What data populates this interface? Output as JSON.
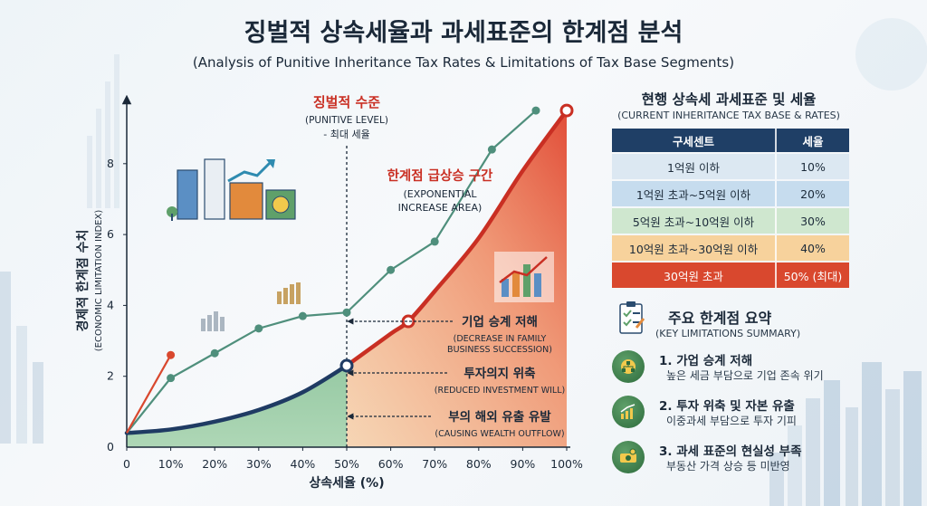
{
  "title": "징벌적 상속세율과 과세표준의 한계점 분석",
  "subtitle": "(Analysis of Punitive Inheritance Tax Rates & Limitations of Tax Base Segments)",
  "chart_data": {
    "type": "line",
    "xlabel": "상속세율 (%)",
    "ylabel": "경제적 한계점 수치",
    "ylabel_en": "(ECONOMIC LIMITATION INDEX)",
    "xlim": [
      0,
      100
    ],
    "ylim": [
      0,
      9.4
    ],
    "x_ticks": [
      0,
      10,
      20,
      30,
      40,
      50,
      60,
      70,
      80,
      90,
      100
    ],
    "x_tick_labels": [
      "0",
      "10%",
      "20%",
      "30%",
      "40%",
      "50%",
      "60%",
      "70%",
      "80%",
      "90%",
      "100%"
    ],
    "y_ticks": [
      0,
      2,
      4,
      6,
      8
    ],
    "y_tick_labels": [
      "0",
      "2",
      "4",
      "6",
      "8"
    ],
    "series": [
      {
        "kind": "curve",
        "color": "#1f3b63",
        "points": [
          [
            0,
            0.4
          ],
          [
            10,
            0.5
          ],
          [
            20,
            0.72
          ],
          [
            30,
            1.05
          ],
          [
            40,
            1.55
          ],
          [
            50,
            2.3
          ]
        ]
      },
      {
        "kind": "curve",
        "color": "#c92f23",
        "points": [
          [
            50,
            2.3
          ],
          [
            60,
            3.2
          ],
          [
            64,
            3.55
          ],
          [
            70,
            4.4
          ],
          [
            80,
            5.9
          ],
          [
            90,
            7.8
          ],
          [
            100,
            9.5
          ]
        ]
      },
      {
        "kind": "markers",
        "color": "#4f8f7c",
        "points": [
          [
            0,
            0.4
          ],
          [
            10,
            1.95
          ],
          [
            20,
            2.65
          ],
          [
            30,
            3.35
          ],
          [
            40,
            3.7
          ],
          [
            50,
            3.8
          ],
          [
            60,
            5.0
          ],
          [
            70,
            5.8
          ],
          [
            83,
            8.4
          ],
          [
            93,
            9.5
          ]
        ]
      },
      {
        "kind": "markers",
        "color": "#d9482e",
        "points": [
          [
            0,
            0.4
          ],
          [
            10,
            2.6
          ]
        ]
      }
    ],
    "threshold": {
      "x": 50
    },
    "annotations": {
      "punitive": {
        "line1": "징벌적 수준",
        "line2": "(PUNITIVE LEVEL)",
        "line3": "- 최대 세율"
      },
      "exponential": {
        "line1": "한계점 급상승 구간",
        "line2": "(EXPONENTIAL",
        "line3": "INCREASE AREA)"
      },
      "succession": {
        "line1": "기업 승계 저해",
        "line2": "(DECREASE IN FAMILY",
        "line3": "BUSINESS SUCCESSION)"
      },
      "investment": {
        "line1": "투자의지 위축",
        "line2": "(REDUCED INVESTMENT WILL)"
      },
      "outflow": {
        "line1": "부의 해외 유출 유발",
        "line2": "(CAUSING WEALTH OUTFLOW)"
      }
    },
    "colors": {
      "green_fill": "#8cc49a",
      "red_fill": "#e8583a",
      "navy": "#1f3b63",
      "red": "#c92f23",
      "teal": "#4f8f7c"
    }
  },
  "rates_panel": {
    "title": "현행 상속세 과세표준 및 세율",
    "subtitle": "(CURRENT INHERITANCE TAX BASE & RATES)",
    "headers": [
      "구세센트",
      "세율"
    ],
    "rows": [
      {
        "bracket": "1억원 이하",
        "rate": "10%"
      },
      {
        "bracket": "1억원 초과~5억원 이하",
        "rate": "20%"
      },
      {
        "bracket": "5억원 초과~10억원 이하",
        "rate": "30%"
      },
      {
        "bracket": "10억원 초과~30억원 이하",
        "rate": "40%"
      },
      {
        "bracket": "30억원 초과",
        "rate": "50% (최대)"
      }
    ]
  },
  "summary": {
    "title": "주요 한계점 요약",
    "subtitle": "(KEY LIMITATIONS SUMMARY)",
    "items": [
      {
        "heading": "1. 가업 승계 저해",
        "desc": "높은 세금 부담으로 기업 존속 위기",
        "icon": "org-chart-icon"
      },
      {
        "heading": "2. 투자 위축 및 자본 유출",
        "desc": "이중과세 부담으로 투자 기피",
        "icon": "growth-chart-icon"
      },
      {
        "heading": "3. 과세 표준의 현실성 부족",
        "desc": "부동산 가격 상승 등 미반영",
        "icon": "money-icon"
      }
    ]
  }
}
